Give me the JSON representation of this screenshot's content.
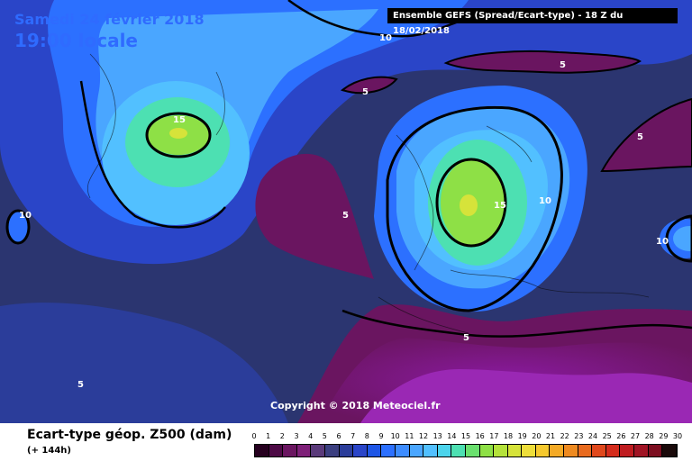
{
  "header": {
    "date_text": "Samedi 24 février 2018",
    "time_text": "19:00 locale",
    "model_text": "Ensemble GEFS  (Spread/Ecart-type) - 18 Z du 18/02/2018"
  },
  "copyright": "Copyright © 2018 Meteociel.fr",
  "legend": {
    "title": "Ecart-type géop. Z500 (dam)",
    "subtitle": "(+ 144h)",
    "scale": [
      "0",
      "1",
      "2",
      "3",
      "4",
      "5",
      "6",
      "7",
      "8",
      "9",
      "10",
      "11",
      "12",
      "13",
      "14",
      "15",
      "16",
      "17",
      "18",
      "19",
      "20",
      "21",
      "22",
      "23",
      "24",
      "25",
      "26",
      "27",
      "28",
      "29",
      "30"
    ],
    "colors": [
      "#26001f",
      "#4d0a45",
      "#6a1560",
      "#7e2078",
      "#5a3a7a",
      "#3b3f80",
      "#2b3d9a",
      "#2a45c8",
      "#1e56e6",
      "#2c70ff",
      "#3d8cff",
      "#4aa6ff",
      "#52c0ff",
      "#4cd4ec",
      "#4de0b2",
      "#6ae06e",
      "#8ee046",
      "#b4e23a",
      "#d6e33a",
      "#eede3a",
      "#f6c92e",
      "#f4aa26",
      "#ee8a20",
      "#e86a1e",
      "#e0481c",
      "#d42c1c",
      "#bf1c20",
      "#a01424",
      "#7c0e20",
      "#1a0a0a"
    ]
  },
  "contour_labels": [
    "15",
    "10",
    "5",
    "5",
    "10",
    "5",
    "10",
    "15",
    "10",
    "10",
    "5",
    "5"
  ],
  "icons": [
    "map-background",
    "coastline-lines",
    "contour-lines"
  ]
}
